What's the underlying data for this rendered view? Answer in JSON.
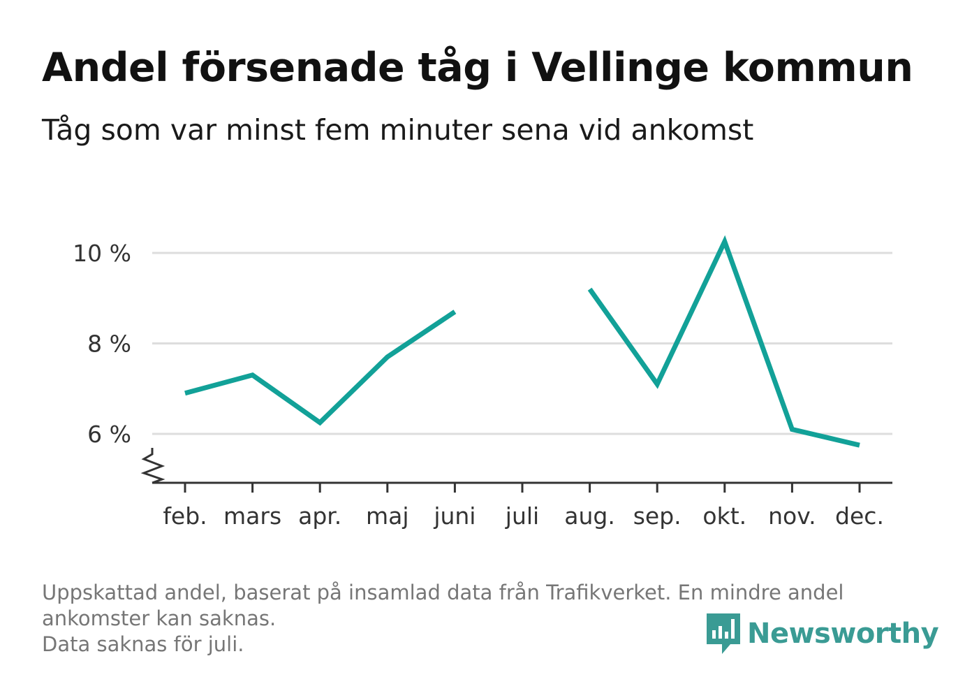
{
  "header": {
    "title": "Andel försenade tåg i Vellinge kommun",
    "subtitle": "Tåg som var minst fem minuter sena vid ankomst"
  },
  "chart_data": {
    "type": "line",
    "categories": [
      "feb.",
      "mars",
      "apr.",
      "maj",
      "juni",
      "juli",
      "aug.",
      "sep.",
      "okt.",
      "nov.",
      "dec."
    ],
    "series": [
      {
        "values": [
          6.9,
          7.3,
          6.25,
          7.7,
          8.7,
          null,
          9.2,
          7.1,
          10.25,
          6.1,
          5.75
        ]
      }
    ],
    "y_ticks": [
      6,
      8,
      10
    ],
    "y_tick_labels": [
      "6 %",
      "8 %",
      "10 %"
    ],
    "ylim": [
      4.9,
      10.4
    ],
    "y_axis_break": true,
    "grid": true,
    "line_color": "#12a198",
    "grid_color": "#dddddd",
    "axis_color": "#333333"
  },
  "footnote": {
    "line1": "Uppskattad andel, baserat på insamlad data från Trafikverket. En mindre andel",
    "line2": "ankomster kan saknas.",
    "line3": "Data saknas för juli."
  },
  "brand": {
    "name": "Newsworthy",
    "icon": "newsworthy-logo-icon",
    "color": "#3a9b94"
  }
}
